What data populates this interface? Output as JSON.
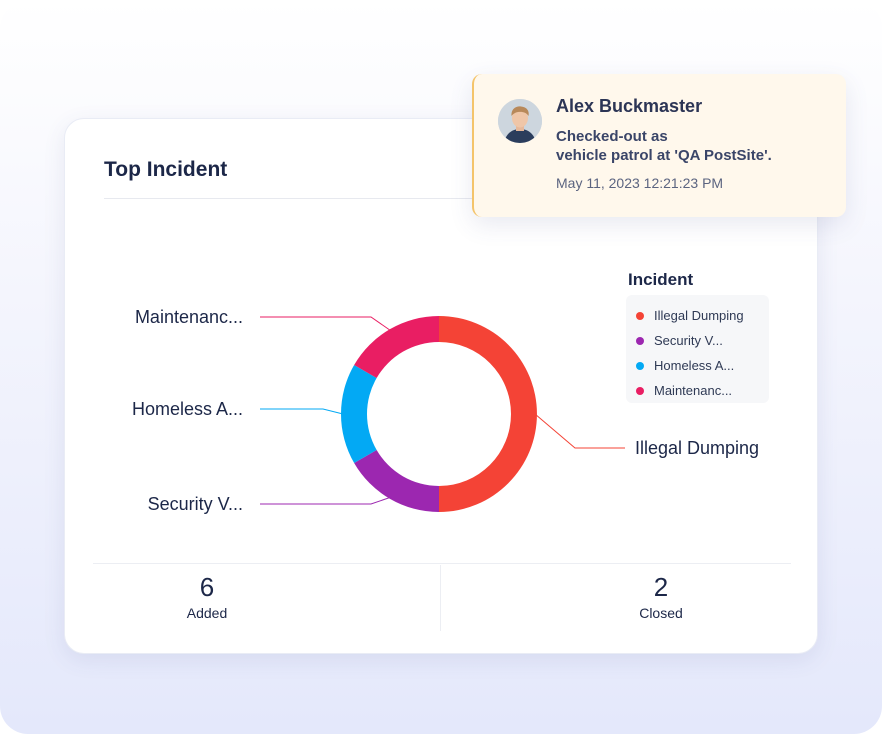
{
  "card": {
    "title": "Top Incident",
    "legend_title": "Incident"
  },
  "chart_data": {
    "type": "donut",
    "title": "",
    "slices": [
      {
        "label": "Illegal Dumping",
        "legend_label": "Illegal Dumping",
        "value": 3,
        "color": "#f44336"
      },
      {
        "label": "Security V...",
        "legend_label": "Security V...",
        "value": 1,
        "color": "#9c27b0"
      },
      {
        "label": "Homeless A...",
        "legend_label": "Homeless A...",
        "value": 1,
        "color": "#03a9f4"
      },
      {
        "label": "Maintenanc...",
        "legend_label": "Maintenanc...",
        "value": 1,
        "color": "#e91e63"
      }
    ],
    "legend_placement": "right"
  },
  "stats": {
    "added": {
      "value": "6",
      "label": "Added"
    },
    "closed": {
      "value": "2",
      "label": "Closed"
    }
  },
  "notification": {
    "name": "Alex Buckmaster",
    "message_line1": "Checked-out as",
    "message_line2": "vehicle patrol at 'QA PostSite'.",
    "timestamp": "May 11, 2023 12:21:23 PM",
    "avatar_icon": "user-avatar-icon"
  },
  "colors": {
    "accent_border": "#f4c46a",
    "notification_bg": "#fff8ec"
  }
}
